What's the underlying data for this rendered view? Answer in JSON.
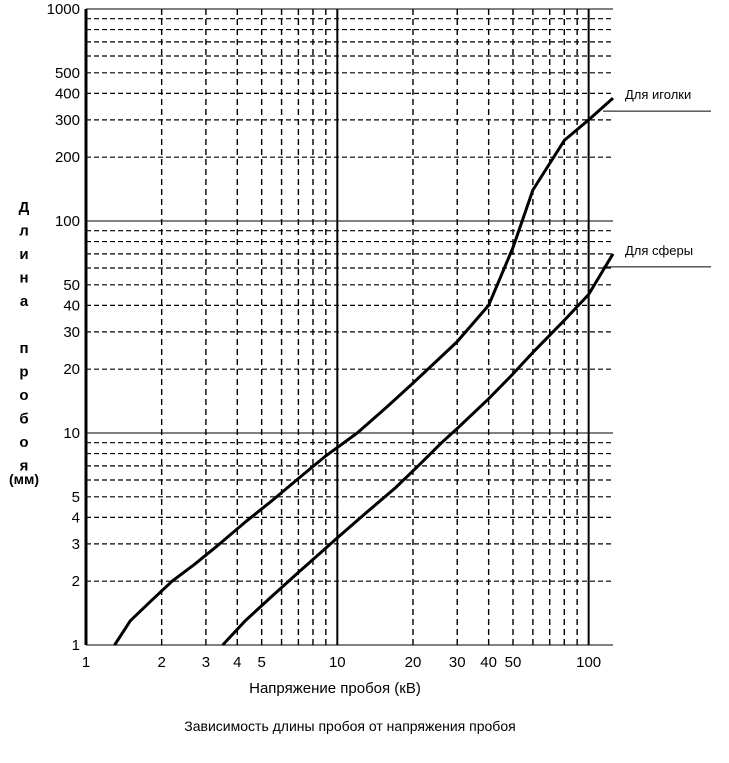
{
  "chart_data": {
    "type": "line",
    "caption": "Зависимость длины пробоя от напряжения пробоя",
    "xlabel": "Напряжение пробоя (кВ)",
    "ylabel_word1": "Длина",
    "ylabel_word2": "пробоя",
    "ylabel_unit": "(мм)",
    "x_scale": "log",
    "y_scale": "log",
    "xlim": [
      1,
      125
    ],
    "ylim": [
      1,
      1000
    ],
    "x_ticks": [
      1,
      2,
      3,
      4,
      5,
      10,
      20,
      30,
      40,
      50,
      100
    ],
    "x_tick_labels": [
      "1",
      "2",
      "3",
      "4",
      "5",
      "10",
      "20",
      "30",
      "40",
      "50",
      "100"
    ],
    "y_ticks": [
      1,
      2,
      3,
      4,
      5,
      10,
      20,
      30,
      40,
      50,
      100,
      200,
      300,
      400,
      500,
      1000
    ],
    "y_tick_labels": [
      "1",
      "2",
      "3",
      "4",
      "5",
      "10",
      "20",
      "30",
      "40",
      "50",
      "100",
      "200",
      "300",
      "400",
      "500",
      "1000"
    ],
    "grid": true,
    "series": [
      {
        "name": "Для иголки",
        "x": [
          1.3,
          1.5,
          1.8,
          2.2,
          2.7,
          3.4,
          4.3,
          5.5,
          7,
          9,
          12,
          16,
          20,
          25,
          30,
          40,
          50,
          60,
          80,
          100,
          125
        ],
        "y": [
          1.0,
          1.3,
          1.6,
          2.0,
          2.4,
          3.0,
          3.8,
          4.8,
          6.1,
          7.8,
          10,
          13.5,
          17.2,
          22,
          27,
          40,
          75,
          140,
          240,
          300,
          380
        ]
      },
      {
        "name": "Для сферы",
        "x": [
          3.5,
          4.3,
          5.5,
          7,
          8.5,
          10,
          13,
          17,
          21,
          26,
          30,
          40,
          50,
          60,
          80,
          100,
          125
        ],
        "y": [
          1.0,
          1.3,
          1.7,
          2.2,
          2.7,
          3.2,
          4.2,
          5.5,
          7.0,
          9.0,
          10.5,
          14.5,
          19,
          24,
          34,
          45,
          70
        ]
      }
    ]
  }
}
